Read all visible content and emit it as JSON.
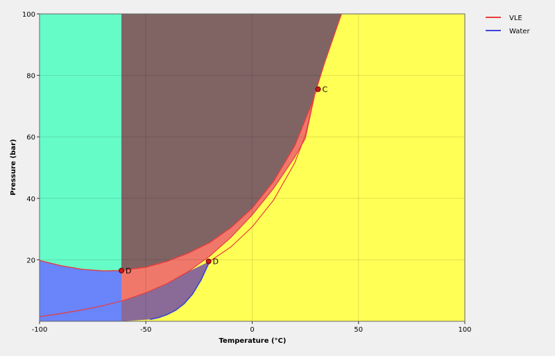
{
  "chart_data": {
    "type": "area",
    "xlabel": "Temperature (°C)",
    "ylabel": "Pressure (bar)",
    "xlim": [
      -100,
      100
    ],
    "ylim": [
      0,
      100
    ],
    "xticks": [
      -100,
      -50,
      0,
      50,
      100
    ],
    "yticks": [
      20,
      40,
      60,
      80,
      100
    ],
    "grid": true,
    "legend_position": "top-right",
    "colors": {
      "background": "#ffff55",
      "hydrate_region": "#806464",
      "vle_region": "#f0786a",
      "vle_line": "#e83c3c",
      "water_region": "#6a84fa",
      "water_line": "#3a44d8",
      "ice_region": "#66fcc8",
      "overlap_region": "#8a6a96",
      "marker": "#cc1a1a"
    },
    "series": [
      {
        "name": "VLE",
        "color": "#e83c3c",
        "bubble_curve": [
          [
            -100,
            1.5
          ],
          [
            -90,
            2.5
          ],
          [
            -80,
            3.7
          ],
          [
            -70,
            5.1
          ],
          [
            -60,
            6.9
          ],
          [
            -50,
            9.3
          ],
          [
            -40,
            12.3
          ],
          [
            -30,
            16.2
          ],
          [
            -20,
            21.2
          ],
          [
            -10,
            27.3
          ],
          [
            0,
            34.6
          ],
          [
            10,
            43.2
          ],
          [
            20,
            53.4
          ],
          [
            25,
            59.5
          ],
          [
            30,
            75.5
          ]
        ],
        "dew_curve": [
          [
            -20,
            19.5
          ],
          [
            -10,
            24.2
          ],
          [
            0,
            30.7
          ],
          [
            10,
            39.4
          ],
          [
            20,
            51.5
          ],
          [
            25,
            60.5
          ],
          [
            30,
            75.5
          ]
        ]
      },
      {
        "name": "Water",
        "color": "#3a44d8",
        "curve": [
          [
            -48,
            0.6
          ],
          [
            -44,
            1.2
          ],
          [
            -40,
            2.2
          ],
          [
            -36,
            3.6
          ],
          [
            -32,
            5.7
          ],
          [
            -28,
            8.9
          ],
          [
            -24,
            13.5
          ],
          [
            -20,
            19.5
          ]
        ]
      }
    ],
    "hydrate_boundary": [
      [
        -100,
        19.8
      ],
      [
        -90,
        18.1
      ],
      [
        -80,
        16.9
      ],
      [
        -70,
        16.4
      ],
      [
        -62,
        16.5
      ],
      [
        -50,
        17.6
      ],
      [
        -40,
        19.5
      ],
      [
        -30,
        22.2
      ],
      [
        -20,
        25.6
      ],
      [
        -10,
        30.5
      ],
      [
        0,
        36.8
      ],
      [
        10,
        45.5
      ],
      [
        20,
        57.1
      ],
      [
        28,
        70.7
      ],
      [
        34,
        84
      ],
      [
        40,
        96
      ],
      [
        42,
        100
      ]
    ],
    "points": [
      {
        "label": "C",
        "x": 31,
        "y": 75.5
      },
      {
        "label": "D",
        "x": -61.5,
        "y": 16.5
      },
      {
        "label": "D",
        "x": -20.5,
        "y": 19.5
      }
    ]
  }
}
